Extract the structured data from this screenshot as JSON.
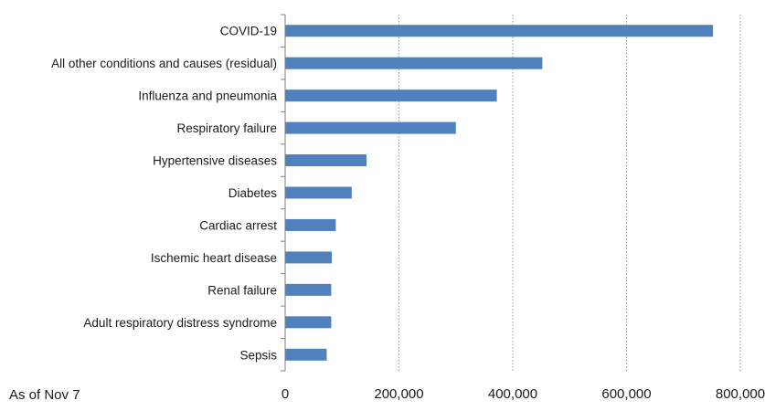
{
  "chart_data": {
    "type": "bar",
    "orientation": "horizontal",
    "categories": [
      "COVID-19",
      "All other conditions and causes (residual)",
      "Influenza and pneumonia",
      "Respiratory failure",
      "Hypertensive diseases",
      "Diabetes",
      "Cardiac arrest",
      "Ischemic heart disease",
      "Renal failure",
      "Adult respiratory distress syndrome",
      "Sepsis"
    ],
    "values": [
      752000,
      452000,
      372000,
      300000,
      143000,
      117000,
      89000,
      82000,
      81000,
      81000,
      73000
    ],
    "xlim": [
      0,
      800000
    ],
    "x_ticks": [
      0,
      200000,
      400000,
      600000,
      800000
    ],
    "x_tick_labels": [
      "0",
      "200,000",
      "400,000",
      "600,000",
      "800,000"
    ],
    "grid": "vertical dotted",
    "bar_color": "#4f81bd",
    "title": "",
    "xlabel": "",
    "ylabel": ""
  },
  "note": "As of Nov 7"
}
